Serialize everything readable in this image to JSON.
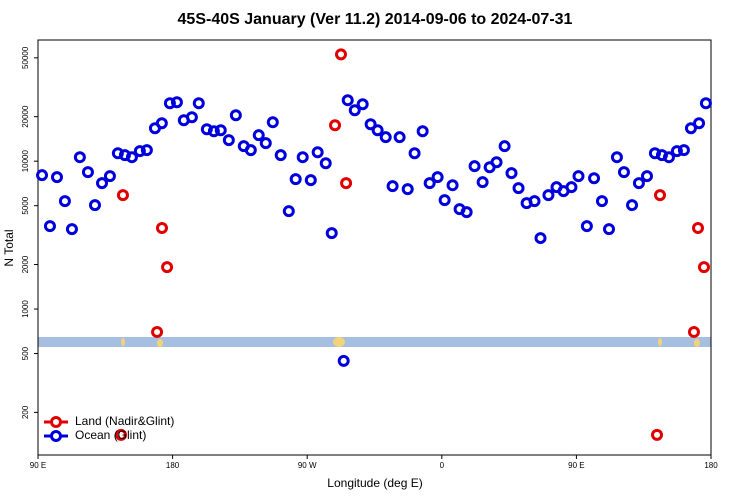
{
  "chart_data": {
    "type": "scatter",
    "title": "45S-40S January (Ver 11.2)   2014-09-06 to 2024-07-31",
    "x_label": "Longitude (deg E)",
    "y_label": "N Total",
    "xlim": [
      90,
      540
    ],
    "xticks": [
      {
        "value": 90,
        "label": "90 E"
      },
      {
        "value": 180,
        "label": "180"
      },
      {
        "value": 270,
        "label": "90 W"
      },
      {
        "value": 360,
        "label": "0"
      },
      {
        "value": 450,
        "label": "90 E"
      },
      {
        "value": 540,
        "label": "180"
      }
    ],
    "ylim": [
      103,
      66000
    ],
    "y_log": true,
    "yticks": [
      200,
      500,
      1000,
      2000,
      5000,
      10000,
      20000,
      50000
    ],
    "legend": "lower left",
    "series": [
      {
        "name": "Land (Nadir&Glint)",
        "color": "#e00000",
        "x": [
          145.5,
          146.8,
          169.6,
          172.9,
          176.3,
          288.6,
          292.6,
          296,
          503.9,
          505.9,
          528.6,
          531.3,
          535.3
        ],
        "values": [
          141,
          5890,
          700,
          3530,
          1920,
          17500,
          52800,
          7100,
          141,
          5890,
          700,
          3530,
          1920
        ]
      },
      {
        "name": "Ocean (Glint)",
        "color": "#0000dd",
        "x": [
          92.7,
          98,
          102.7,
          108,
          112.7,
          118,
          123.4,
          128.1,
          132.8,
          138.1,
          143.4,
          148.1,
          152.8,
          158.1,
          162.8,
          168.2,
          172.8,
          178.2,
          182.9,
          187.5,
          192.9,
          197.5,
          202.9,
          207.6,
          212.2,
          217.6,
          222.3,
          227.6,
          232.3,
          237.6,
          242.3,
          247,
          252.3,
          257.7,
          262.3,
          267,
          272.4,
          277,
          282.4,
          286.4,
          294.4,
          297.1,
          301.8,
          307.1,
          312.4,
          317.1,
          322.5,
          327.1,
          331.8,
          337.2,
          341.8,
          347.2,
          351.9,
          357.2,
          361.9,
          367.2,
          371.9,
          376.6,
          381.9,
          387.3,
          392,
          396.6,
          402,
          406.6,
          411.3,
          416.7,
          422,
          426,
          431.3,
          436.7,
          441.4,
          446.7,
          451.4,
          457,
          461.8,
          467.1,
          471.8,
          477.1,
          481.8,
          487.2,
          491.8,
          497.2,
          502.5,
          507.2,
          511.9,
          517.2,
          521.9,
          526.6,
          532,
          536.6
        ],
        "values": [
          8040,
          3640,
          7800,
          5370,
          3470,
          10640,
          8430,
          5040,
          7100,
          7920,
          11320,
          10980,
          10640,
          11690,
          11870,
          16710,
          18060,
          24660,
          25040,
          18920,
          19830,
          24660,
          16450,
          15950,
          16190,
          13870,
          20460,
          12630,
          11870,
          14990,
          13240,
          18350,
          10980,
          4590,
          7560,
          10640,
          7440,
          11500,
          9690,
          3260,
          446,
          25850,
          22120,
          24270,
          17780,
          16190,
          14530,
          6780,
          14530,
          6470,
          11320,
          15950,
          7100,
          7800,
          5450,
          6880,
          4740,
          4520,
          9250,
          7210,
          9100,
          9840,
          12630,
          8300,
          6570,
          5200,
          5370,
          3020,
          5890,
          6670,
          6270,
          6670,
          7920,
          3640,
          7670,
          5370,
          3470,
          10640,
          8430,
          5040,
          7100,
          7920,
          11320,
          10980,
          10640,
          11690,
          11870,
          16710,
          18060,
          24660
        ]
      }
    ]
  }
}
